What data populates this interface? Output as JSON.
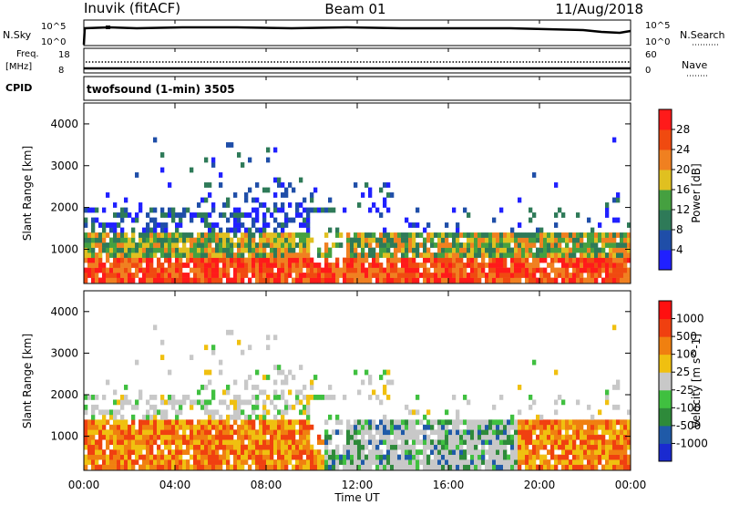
{
  "header": {
    "station": "Inuvik (fitACF)",
    "beam": "Beam 01",
    "date": "11/Aug/2018"
  },
  "noise_panel": {
    "left_label": "N.Sky",
    "left_ticks": [
      "10^5",
      "10^0"
    ],
    "right_ticks": [
      "10^5",
      "10^0"
    ],
    "right_label": "N.Search"
  },
  "freq_panel": {
    "left_label_1": "Freq.",
    "left_label_2": "[MHz]",
    "left_ticks": [
      "18",
      "8"
    ],
    "right_ticks": [
      "60",
      "0"
    ],
    "right_label": "Nave"
  },
  "cpid_panel": {
    "label": "CPID",
    "program": "twofsound (1-min) 3505"
  },
  "chart_data": [
    {
      "type": "heatmap",
      "quantity": "Power",
      "ylabel": "Slant Range [km]",
      "xlabel": "",
      "ylim": [
        180,
        4500
      ],
      "xlim": [
        0,
        24
      ],
      "y_ticks": [
        "1000",
        "2000",
        "3000",
        "4000"
      ],
      "colorbar_label": "Power [dB]",
      "colorbar_ticks": [
        "28",
        "24",
        "20",
        "16",
        "12",
        "8",
        "4"
      ],
      "colorbar_range": [
        0,
        32
      ],
      "colors": [
        "#2020ff",
        "#1f4ea8",
        "#2e7a58",
        "#45a040",
        "#e0c020",
        "#f08020",
        "#f04a10",
        "#ff1a1a"
      ]
    },
    {
      "type": "heatmap",
      "quantity": "Velocity",
      "ylabel": "Slant Range [km]",
      "xlabel": "Time UT",
      "ylim": [
        180,
        4500
      ],
      "xlim": [
        0,
        24
      ],
      "y_ticks": [
        "1000",
        "2000",
        "3000",
        "4000"
      ],
      "x_ticks": [
        "00:00",
        "04:00",
        "08:00",
        "12:00",
        "16:00",
        "20:00",
        "00:00"
      ],
      "colorbar_label": "Velocity [m s^-1]",
      "colorbar_ticks": [
        "1000",
        "500",
        "100",
        "25",
        "-25",
        "-100",
        "-500",
        "-1000"
      ],
      "colors": [
        "#1a2ad0",
        "#1f5aa8",
        "#2e8a3a",
        "#40c040",
        "#c8c8c8",
        "#f0c010",
        "#f08010",
        "#f04010",
        "#ff1010"
      ]
    }
  ]
}
